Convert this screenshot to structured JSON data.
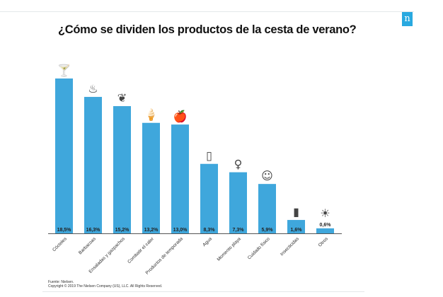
{
  "logo_text": "n",
  "footer": {
    "source": "Fuente: Nielsen.",
    "copyright": "Copyright © 2019 The Nielsen Company (US), LLC. All Rights Reserved."
  },
  "colors": {
    "bar": "#3fa7dc",
    "accent": "#29a9e0",
    "icon_accent": "#e0308a"
  },
  "chart_data": {
    "type": "bar",
    "title": "¿Cómo se dividen los productos de la cesta de verano?",
    "categories": [
      "Cócteles",
      "Barbacoas",
      "Ensaladas y gazpachos",
      "Combatir el calor",
      "Productos de temporada",
      "Agua",
      "Momento playa",
      "Cuidado físico",
      "Insecticidas",
      "Otros"
    ],
    "values": [
      18.5,
      16.3,
      15.2,
      13.2,
      13.0,
      8.3,
      7.3,
      5.9,
      1.6,
      0.6
    ],
    "data_labels": [
      "18,5%",
      "16,3%",
      "15,2%",
      "13,2%",
      "13,0%",
      "8,3%",
      "7,3%",
      "5,9%",
      "1,6%",
      "0,6%"
    ],
    "icons": [
      "cocktail-bottles-icon",
      "barbecue-icon",
      "salad-vegetables-icon",
      "ice-cream-icon",
      "apple-icon",
      "water-bottle-icon",
      "swimsuit-icon",
      "person-care-icon",
      "spray-can-icon",
      "sun-icon"
    ],
    "xlabel": "",
    "ylabel": "",
    "ylim": [
      0,
      18.5
    ],
    "grid": false,
    "legend": "none"
  }
}
